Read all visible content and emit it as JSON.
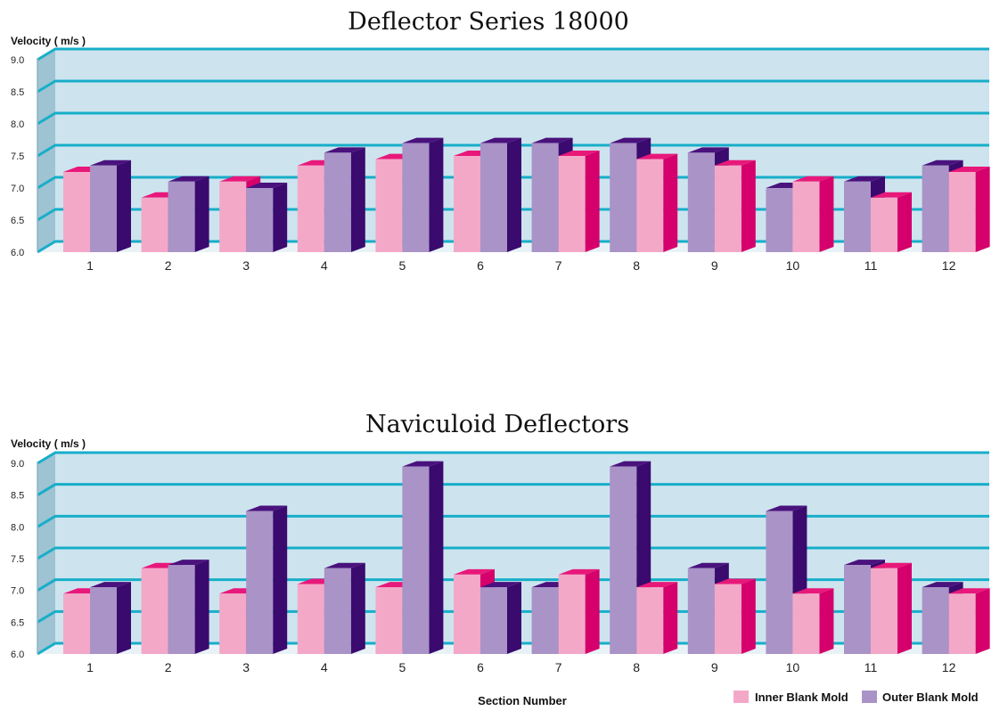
{
  "colors": {
    "inner_front": "#f4a8c8",
    "inner_top": "#e8187a",
    "inner_side": "#d5006b",
    "outer_front": "#a993c7",
    "outer_top": "#4a127d",
    "outer_side": "#3a0a6e",
    "plot_bg": "#cde4ee",
    "grid": "#17aec9",
    "wall_side": "#9ec3d2",
    "floor": "#e8f2f6"
  },
  "legend": {
    "inner": "Inner Blank Mold",
    "outer": "Outer Blank Mold"
  },
  "chart_data": [
    {
      "type": "bar",
      "title": "Deflector Series 18000",
      "ylabel": "Velocity ( m/s )",
      "xlabel": "",
      "ylim": [
        6.0,
        9.0
      ],
      "yticks": [
        "9.0",
        "8.5",
        "8.0",
        "7.5",
        "7.0",
        "6.5",
        "6.0"
      ],
      "grid": true,
      "categories": [
        "1",
        "2",
        "3",
        "4",
        "5",
        "6",
        "7",
        "8",
        "9",
        "10",
        "11",
        "12"
      ],
      "series": [
        {
          "name": "Inner Blank Mold",
          "values": [
            7.25,
            6.85,
            7.1,
            7.35,
            7.45,
            7.5,
            7.5,
            7.45,
            7.35,
            7.1,
            6.85,
            7.25
          ]
        },
        {
          "name": "Outer Blank Mold",
          "values": [
            7.35,
            7.1,
            7.0,
            7.55,
            7.7,
            7.7,
            7.7,
            7.7,
            7.55,
            7.0,
            7.1,
            7.35
          ]
        }
      ],
      "bar_order": [
        "io",
        "io",
        "io",
        "io",
        "io",
        "io",
        "oi",
        "oi",
        "oi",
        "oi",
        "oi",
        "oi"
      ]
    },
    {
      "type": "bar",
      "title": "Naviculoid Deflectors",
      "ylabel": "Velocity ( m/s )",
      "xlabel": "Section Number",
      "ylim": [
        6.0,
        9.0
      ],
      "yticks": [
        "9.0",
        "8.5",
        "8.0",
        "7.5",
        "7.0",
        "6.5",
        "6.0"
      ],
      "grid": true,
      "categories": [
        "1",
        "2",
        "3",
        "4",
        "5",
        "6",
        "7",
        "8",
        "9",
        "10",
        "11",
        "12"
      ],
      "series": [
        {
          "name": "Inner Blank Mold",
          "values": [
            6.95,
            7.35,
            6.95,
            7.1,
            7.05,
            7.25,
            7.25,
            7.05,
            7.1,
            6.95,
            7.35,
            6.95
          ]
        },
        {
          "name": "Outer Blank Mold",
          "values": [
            7.05,
            7.4,
            8.25,
            7.35,
            8.95,
            7.05,
            7.05,
            8.95,
            7.35,
            8.25,
            7.4,
            7.05
          ]
        }
      ],
      "bar_order": [
        "io",
        "io",
        "io",
        "io",
        "io",
        "io",
        "oi",
        "oi",
        "oi",
        "oi",
        "oi",
        "oi"
      ]
    }
  ]
}
